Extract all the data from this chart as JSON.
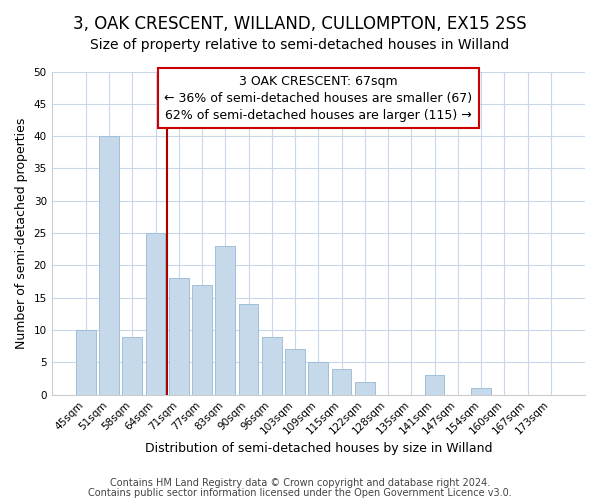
{
  "title": "3, OAK CRESCENT, WILLAND, CULLOMPTON, EX15 2SS",
  "subtitle": "Size of property relative to semi-detached houses in Willand",
  "xlabel": "Distribution of semi-detached houses by size in Willand",
  "ylabel": "Number of semi-detached properties",
  "categories": [
    "45sqm",
    "51sqm",
    "58sqm",
    "64sqm",
    "71sqm",
    "77sqm",
    "83sqm",
    "90sqm",
    "96sqm",
    "103sqm",
    "109sqm",
    "115sqm",
    "122sqm",
    "128sqm",
    "135sqm",
    "141sqm",
    "147sqm",
    "154sqm",
    "160sqm",
    "167sqm",
    "173sqm"
  ],
  "values": [
    10,
    40,
    9,
    25,
    18,
    17,
    23,
    14,
    9,
    7,
    5,
    4,
    2,
    0,
    0,
    3,
    0,
    1,
    0,
    0,
    0
  ],
  "bar_color": "#c5d9ea",
  "bar_edge_color": "#a0bfd8",
  "highlight_line_color": "#aa0000",
  "annotation_box_edge_color": "#cc0000",
  "annotation_title": "3 OAK CRESCENT: 67sqm",
  "annotation_line1": "← 36% of semi-detached houses are smaller (67)",
  "annotation_line2": "62% of semi-detached houses are larger (115) →",
  "ylim": [
    0,
    50
  ],
  "yticks": [
    0,
    5,
    10,
    15,
    20,
    25,
    30,
    35,
    40,
    45,
    50
  ],
  "footer1": "Contains HM Land Registry data © Crown copyright and database right 2024.",
  "footer2": "Contains public sector information licensed under the Open Government Licence v3.0.",
  "background_color": "#ffffff",
  "grid_color": "#c8d8e8",
  "title_fontsize": 12,
  "subtitle_fontsize": 10,
  "axis_label_fontsize": 9,
  "tick_fontsize": 7.5,
  "annotation_fontsize": 9,
  "footer_fontsize": 7
}
